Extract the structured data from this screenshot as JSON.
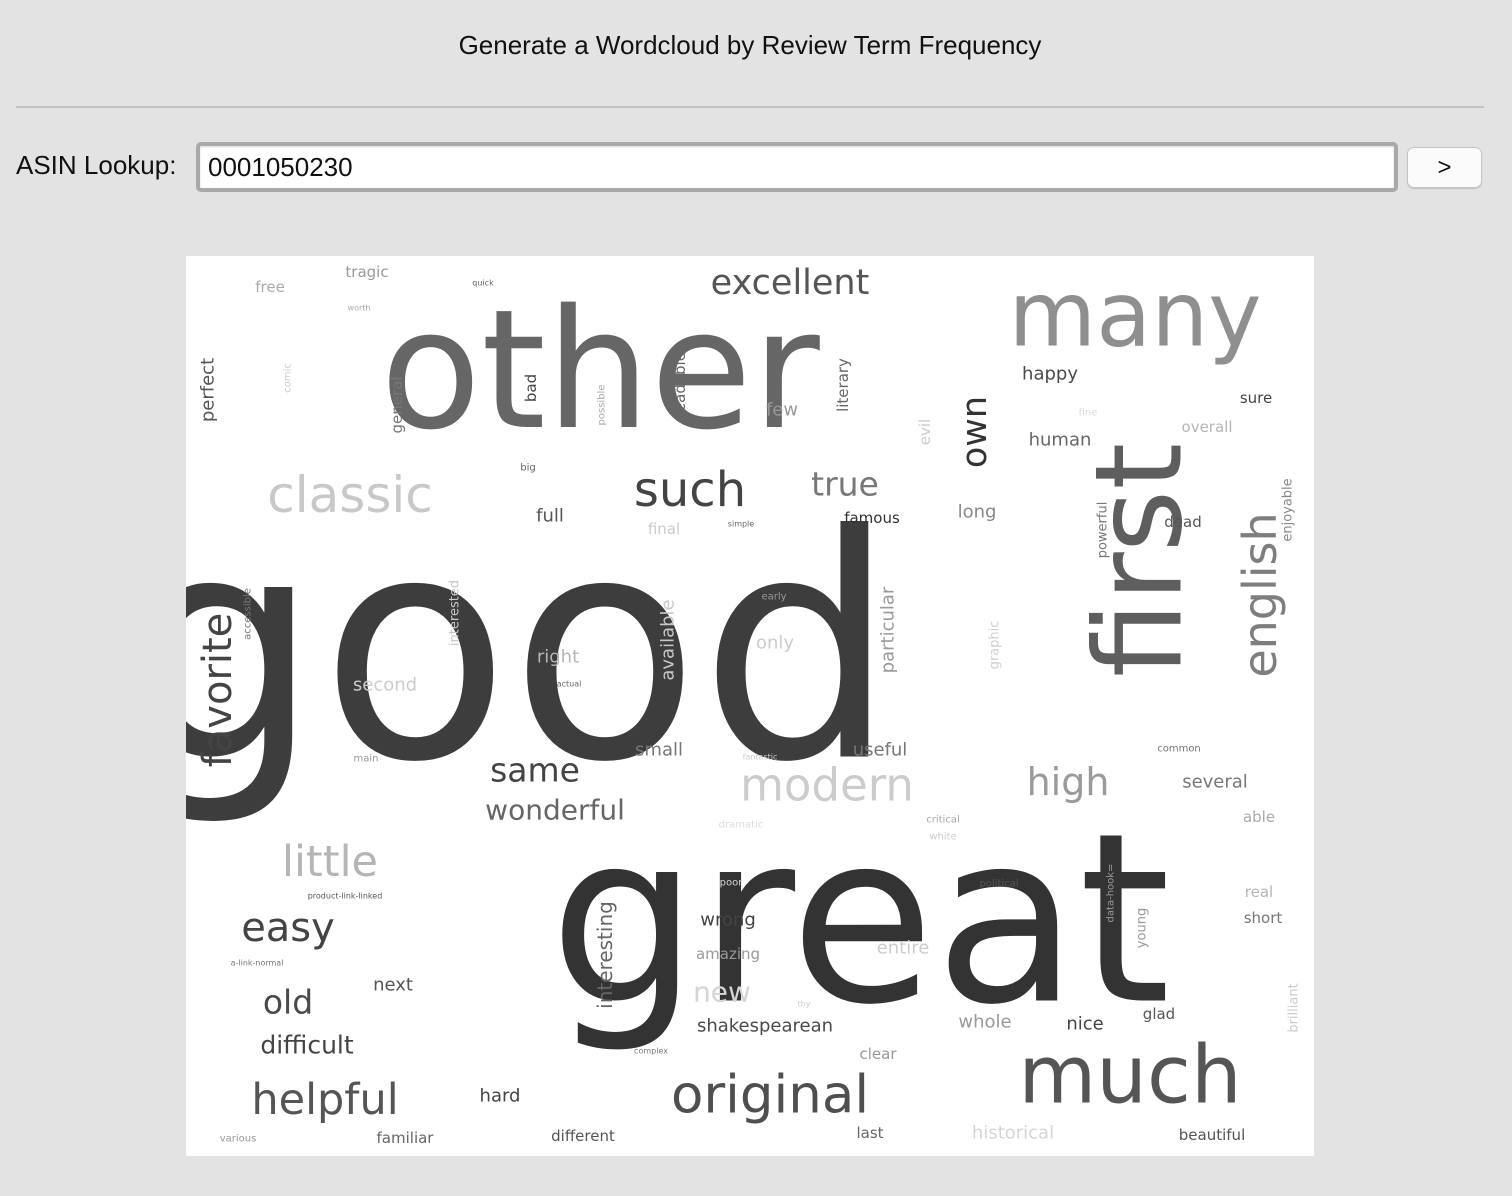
{
  "header": {
    "title": "Generate a Wordcloud by Review Term Frequency"
  },
  "search": {
    "label": "ASIN Lookup:",
    "value": "0001050230",
    "submit_label": ">"
  },
  "wordcloud": {
    "words": [
      {
        "text": "good",
        "size": 620,
        "shade": "#3d3d3d",
        "rot": 0
      },
      {
        "text": "great",
        "size": 470,
        "shade": "#333333",
        "rot": 0
      },
      {
        "text": "other",
        "size": 330,
        "shade": "#666666",
        "rot": 0
      },
      {
        "text": "first",
        "size": 240,
        "shade": "#5e5e5e",
        "rot": -90
      },
      {
        "text": "many",
        "size": 180,
        "shade": "#8f8f8f",
        "rot": 0
      },
      {
        "text": "much",
        "size": 160,
        "shade": "#555555",
        "rot": 0
      },
      {
        "text": "original",
        "size": 105,
        "shade": "#4f4f4f",
        "rot": 0
      },
      {
        "text": "classic",
        "size": 100,
        "shade": "#c8c8c8",
        "rot": 0
      },
      {
        "text": "such",
        "size": 95,
        "shade": "#444444",
        "rot": 0
      },
      {
        "text": "english",
        "size": 92,
        "shade": "#7e7e7e",
        "rot": -90
      },
      {
        "text": "modern",
        "size": 90,
        "shade": "#cccccc",
        "rot": 0
      },
      {
        "text": "little",
        "size": 85,
        "shade": "#b5b5b5",
        "rot": 0
      },
      {
        "text": "helpful",
        "size": 85,
        "shade": "#555555",
        "rot": 0
      },
      {
        "text": "favorite",
        "size": 80,
        "shade": "#444444",
        "rot": -90
      },
      {
        "text": "easy",
        "size": 80,
        "shade": "#444444",
        "rot": 0
      },
      {
        "text": "high",
        "size": 75,
        "shade": "#9a9a9a",
        "rot": 0
      },
      {
        "text": "own",
        "size": 70,
        "shade": "#333333",
        "rot": -90
      },
      {
        "text": "excellent",
        "size": 70,
        "shade": "#555555",
        "rot": 0
      },
      {
        "text": "same",
        "size": 65,
        "shade": "#444444",
        "rot": 0
      },
      {
        "text": "old",
        "size": 65,
        "shade": "#4a4a4a",
        "rot": 0
      },
      {
        "text": "true",
        "size": 65,
        "shade": "#777777",
        "rot": 0
      },
      {
        "text": "new",
        "size": 55,
        "shade": "#d5d5d5",
        "rot": 0
      },
      {
        "text": "wonderful",
        "size": 55,
        "shade": "#666666",
        "rot": 0
      },
      {
        "text": "difficult",
        "size": 50,
        "shade": "#444444",
        "rot": 0
      },
      {
        "text": "interesting",
        "size": 40,
        "shade": "#666666",
        "rot": -90
      },
      {
        "text": "shakespearean",
        "size": 35,
        "shade": "#4a4a4a",
        "rot": 0
      },
      {
        "text": "perfect",
        "size": 35,
        "shade": "#555555",
        "rot": -90
      },
      {
        "text": "available",
        "size": 35,
        "shade": "#c8c8c8",
        "rot": -90
      },
      {
        "text": "particular",
        "size": 35,
        "shade": "#999999",
        "rot": -90
      },
      {
        "text": "several",
        "size": 35,
        "shade": "#777777",
        "rot": 0
      },
      {
        "text": "famous",
        "size": 30,
        "shade": "#333333",
        "rot": 0
      },
      {
        "text": "literary",
        "size": 30,
        "shade": "#666666",
        "rot": -90
      },
      {
        "text": "readable",
        "size": 30,
        "shade": "#666666",
        "rot": -90
      },
      {
        "text": "full",
        "size": 35,
        "shade": "#555555",
        "rot": 0
      },
      {
        "text": "happy",
        "size": 35,
        "shade": "#4a4a4a",
        "rot": 0
      },
      {
        "text": "human",
        "size": 35,
        "shade": "#666666",
        "rot": 0
      },
      {
        "text": "sure",
        "size": 30,
        "shade": "#444444",
        "rot": 0
      },
      {
        "text": "overall",
        "size": 30,
        "shade": "#b5b5b5",
        "rot": 0
      },
      {
        "text": "dead",
        "size": 30,
        "shade": "#555555",
        "rot": 0
      },
      {
        "text": "long",
        "size": 35,
        "shade": "#888888",
        "rot": 0
      },
      {
        "text": "few",
        "size": 35,
        "shade": "#999999",
        "rot": 0
      },
      {
        "text": "second",
        "size": 35,
        "shade": "#cccccc",
        "rot": 0
      },
      {
        "text": "right",
        "size": 35,
        "shade": "#b5b5b5",
        "rot": 0
      },
      {
        "text": "only",
        "size": 35,
        "shade": "#cccccc",
        "rot": 0
      },
      {
        "text": "small",
        "size": 35,
        "shade": "#777777",
        "rot": 0
      },
      {
        "text": "useful",
        "size": 35,
        "shade": "#777777",
        "rot": 0
      },
      {
        "text": "wrong",
        "size": 35,
        "shade": "#444444",
        "rot": 0
      },
      {
        "text": "amazing",
        "size": 30,
        "shade": "#999999",
        "rot": 0
      },
      {
        "text": "entire",
        "size": 35,
        "shade": "#cccccc",
        "rot": 0
      },
      {
        "text": "next",
        "size": 35,
        "shade": "#555555",
        "rot": 0
      },
      {
        "text": "hard",
        "size": 35,
        "shade": "#444444",
        "rot": 0
      },
      {
        "text": "whole",
        "size": 35,
        "shade": "#999999",
        "rot": 0
      },
      {
        "text": "nice",
        "size": 35,
        "shade": "#444444",
        "rot": 0
      },
      {
        "text": "glad",
        "size": 30,
        "shade": "#555555",
        "rot": 0
      },
      {
        "text": "clear",
        "size": 30,
        "shade": "#999999",
        "rot": 0
      },
      {
        "text": "last",
        "size": 30,
        "shade": "#666666",
        "rot": 0
      },
      {
        "text": "historical",
        "size": 35,
        "shade": "#d5d5d5",
        "rot": 0
      },
      {
        "text": "beautiful",
        "size": 30,
        "shade": "#555555",
        "rot": 0
      },
      {
        "text": "familiar",
        "size": 30,
        "shade": "#666666",
        "rot": 0
      },
      {
        "text": "different",
        "size": 30,
        "shade": "#555555",
        "rot": 0
      },
      {
        "text": "free",
        "size": 30,
        "shade": "#aaaaaa",
        "rot": 0
      },
      {
        "text": "tragic",
        "size": 30,
        "shade": "#999999",
        "rot": 0
      },
      {
        "text": "general",
        "size": 30,
        "shade": "#777777",
        "rot": -90
      },
      {
        "text": "bad",
        "size": 30,
        "shade": "#444444",
        "rot": -90
      },
      {
        "text": "evil",
        "size": 30,
        "shade": "#cccccc",
        "rot": -90
      },
      {
        "text": "powerful",
        "size": 25,
        "shade": "#777777",
        "rot": -90
      },
      {
        "text": "enjoyable",
        "size": 25,
        "shade": "#888888",
        "rot": -90
      },
      {
        "text": "graphic",
        "size": 25,
        "shade": "#d0d0d0",
        "rot": -90
      },
      {
        "text": "interested",
        "size": 25,
        "shade": "#c8c8c8",
        "rot": -90
      },
      {
        "text": "young",
        "size": 25,
        "shade": "#999999",
        "rot": -90
      },
      {
        "text": "brilliant",
        "size": 25,
        "shade": "#cccccc",
        "rot": -90
      },
      {
        "text": "accessible",
        "size": 20,
        "shade": "#777777",
        "rot": -90
      },
      {
        "text": "possible",
        "size": 20,
        "shade": "#aaaaaa",
        "rot": -90
      },
      {
        "text": "comic",
        "size": 20,
        "shade": "#cccccc",
        "rot": -90
      },
      {
        "text": "data-hook=",
        "size": 20,
        "shade": "#999999",
        "rot": -90
      },
      {
        "text": "real",
        "size": 30,
        "shade": "#b5b5b5",
        "rot": 0
      },
      {
        "text": "short",
        "size": 30,
        "shade": "#777777",
        "rot": 0
      },
      {
        "text": "able",
        "size": 30,
        "shade": "#aaaaaa",
        "rot": 0
      },
      {
        "text": "common",
        "size": 20,
        "shade": "#777777",
        "rot": 0
      },
      {
        "text": "political",
        "size": 20,
        "shade": "#555555",
        "rot": 0
      },
      {
        "text": "critical",
        "size": 20,
        "shade": "#aaaaaa",
        "rot": 0
      },
      {
        "text": "white",
        "size": 20,
        "shade": "#cccccc",
        "rot": 0
      },
      {
        "text": "dramatic",
        "size": 20,
        "shade": "#dddddd",
        "rot": 0
      },
      {
        "text": "poor",
        "size": 20,
        "shade": "#d5d5d5",
        "rot": 0
      },
      {
        "text": "final",
        "size": 30,
        "shade": "#cccccc",
        "rot": 0
      },
      {
        "text": "simple",
        "size": 15,
        "shade": "#666666",
        "rot": 0
      },
      {
        "text": "big",
        "size": 20,
        "shade": "#666666",
        "rot": 0
      },
      {
        "text": "early",
        "size": 20,
        "shade": "#999999",
        "rot": 0
      },
      {
        "text": "actual",
        "size": 15,
        "shade": "#666666",
        "rot": 0
      },
      {
        "text": "main",
        "size": 20,
        "shade": "#999999",
        "rot": 0
      },
      {
        "text": "fantastic",
        "size": 15,
        "shade": "#cccccc",
        "rot": 0
      },
      {
        "text": "quick",
        "size": 15,
        "shade": "#666666",
        "rot": 0
      },
      {
        "text": "worth",
        "size": 15,
        "shade": "#aaaaaa",
        "rot": 0
      },
      {
        "text": "fine",
        "size": 20,
        "shade": "#dddddd",
        "rot": 0
      },
      {
        "text": "product-link-linked",
        "size": 15,
        "shade": "#555555",
        "rot": 0
      },
      {
        "text": "a-link-normal",
        "size": 15,
        "shade": "#777777",
        "rot": 0
      },
      {
        "text": "various",
        "size": 20,
        "shade": "#999999",
        "rot": 0
      },
      {
        "text": "complex",
        "size": 15,
        "shade": "#777777",
        "rot": 0
      },
      {
        "text": "thy",
        "size": 15,
        "shade": "#cccccc",
        "rot": 0
      }
    ]
  }
}
